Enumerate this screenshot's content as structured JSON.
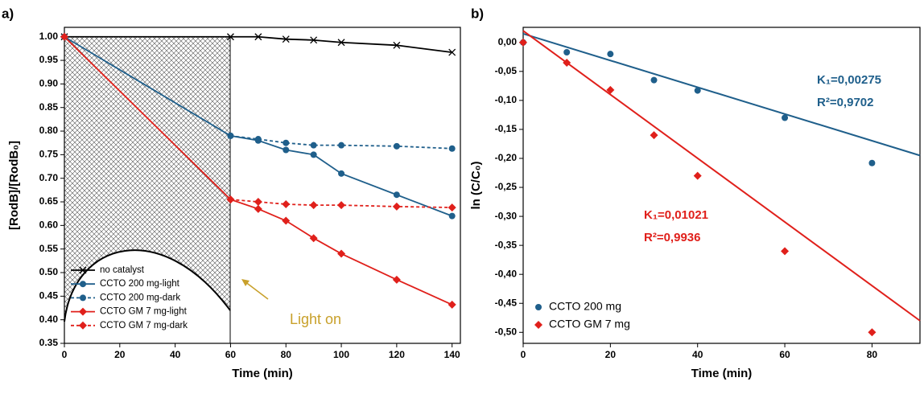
{
  "chart_data": [
    {
      "type": "line",
      "panel_label": "a)",
      "x_label": "Time (min)",
      "y_label": "[RodB]/[RodB₀]",
      "annotation": "Light on",
      "xlim": [
        0,
        143
      ],
      "ylim": [
        0.35,
        1.02
      ],
      "xticks": [
        0,
        20,
        40,
        60,
        80,
        100,
        120,
        140
      ],
      "yticks": [
        {
          "value": 0.35,
          "label": "0.35"
        },
        {
          "value": 0.4,
          "label": "0.40"
        },
        {
          "value": 0.45,
          "label": "0.45"
        },
        {
          "value": 0.5,
          "label": "0.50"
        },
        {
          "value": 0.55,
          "label": "0.55"
        },
        {
          "value": 0.6,
          "label": "0.60"
        },
        {
          "value": 0.65,
          "label": "0.65"
        },
        {
          "value": 0.7,
          "label": "0.70"
        },
        {
          "value": 0.75,
          "label": "0.75"
        },
        {
          "value": 0.8,
          "label": "0.80"
        },
        {
          "value": 0.85,
          "label": "0.85"
        },
        {
          "value": 0.9,
          "label": "0.90"
        },
        {
          "value": 0.95,
          "label": "0.95"
        },
        {
          "value": 1.0,
          "label": "1.00"
        }
      ],
      "legend": "lower left",
      "series": [
        {
          "name": "no catalyst",
          "color": "#000000",
          "marker": "x",
          "dash": false,
          "x": [
            0,
            60,
            70,
            80,
            90,
            100,
            120,
            140
          ],
          "values": [
            1.0,
            1.0,
            1.0,
            0.995,
            0.993,
            0.988,
            0.982,
            0.967
          ]
        },
        {
          "name": "CCTO 200 mg-light",
          "color": "#1f5f8b",
          "marker": "circle",
          "dash": false,
          "x": [
            0,
            60,
            70,
            80,
            90,
            100,
            120,
            140
          ],
          "values": [
            1.0,
            0.79,
            0.78,
            0.76,
            0.75,
            0.71,
            0.665,
            0.62
          ]
        },
        {
          "name": "CCTO 200 mg-dark",
          "color": "#1f5f8b",
          "marker": "circle",
          "dash": true,
          "x": [
            60,
            70,
            80,
            90,
            100,
            120,
            140
          ],
          "values": [
            0.79,
            0.783,
            0.775,
            0.77,
            0.77,
            0.768,
            0.763
          ]
        },
        {
          "name": "CCTO GM 7 mg-light",
          "color": "#e0201b",
          "marker": "diamond",
          "dash": false,
          "x": [
            0,
            60,
            70,
            80,
            90,
            100,
            120,
            140
          ],
          "values": [
            1.0,
            0.655,
            0.635,
            0.61,
            0.573,
            0.54,
            0.485,
            0.432
          ]
        },
        {
          "name": "CCTO GM 7 mg-dark",
          "color": "#e0201b",
          "marker": "diamond",
          "dash": true,
          "x": [
            60,
            70,
            80,
            90,
            100,
            120,
            140
          ],
          "values": [
            0.655,
            0.65,
            0.645,
            0.643,
            0.643,
            0.64,
            0.638
          ]
        }
      ]
    },
    {
      "type": "scatter",
      "panel_label": "b)",
      "x_label": "Time (min)",
      "y_label": "ln (C/C₀)",
      "annotations": [
        {
          "lines": [
            "K₁=0,00275",
            "R²=0,9702"
          ],
          "color": "#1f5f8b"
        },
        {
          "lines": [
            "K₁=0,01021",
            "R²=0,9936"
          ],
          "color": "#e0201b"
        }
      ],
      "xlim": [
        0,
        91
      ],
      "ylim": [
        -0.519,
        0.026
      ],
      "xticks": [
        0,
        20,
        40,
        60,
        80
      ],
      "yticks": [
        {
          "value": 0,
          "label": "0,00"
        },
        {
          "value": -0.05,
          "label": "-0,05"
        },
        {
          "value": -0.1,
          "label": "-0,10"
        },
        {
          "value": -0.15,
          "label": "-0,15"
        },
        {
          "value": -0.2,
          "label": "-0,20"
        },
        {
          "value": -0.25,
          "label": "-0,25"
        },
        {
          "value": -0.3,
          "label": "-0,30"
        },
        {
          "value": -0.35,
          "label": "-0,35"
        },
        {
          "value": -0.4,
          "label": "-0,40"
        },
        {
          "value": -0.45,
          "label": "-0,45"
        },
        {
          "value": -0.5,
          "label": "-0,50"
        }
      ],
      "legend": "lower left",
      "series": [
        {
          "name": "CCTO 200 mg",
          "color": "#1f5f8b",
          "marker": "circle",
          "x": [
            0,
            10,
            20,
            30,
            40,
            60,
            80
          ],
          "values": [
            0,
            -0.017,
            -0.02,
            -0.065,
            -0.083,
            -0.13,
            -0.208
          ]
        },
        {
          "name": "CCTO GM 7 mg",
          "color": "#e0201b",
          "marker": "diamond",
          "x": [
            0,
            10,
            20,
            30,
            40,
            60,
            80
          ],
          "values": [
            0,
            -0.035,
            -0.082,
            -0.16,
            -0.23,
            -0.36,
            -0.5
          ]
        }
      ],
      "fit_lines": [
        {
          "color": "#1f5f8b",
          "x": [
            0,
            91
          ],
          "values": [
            0.015,
            -0.195
          ]
        },
        {
          "color": "#e0201b",
          "x": [
            0,
            91
          ],
          "values": [
            0.02,
            -0.48
          ]
        }
      ]
    }
  ]
}
